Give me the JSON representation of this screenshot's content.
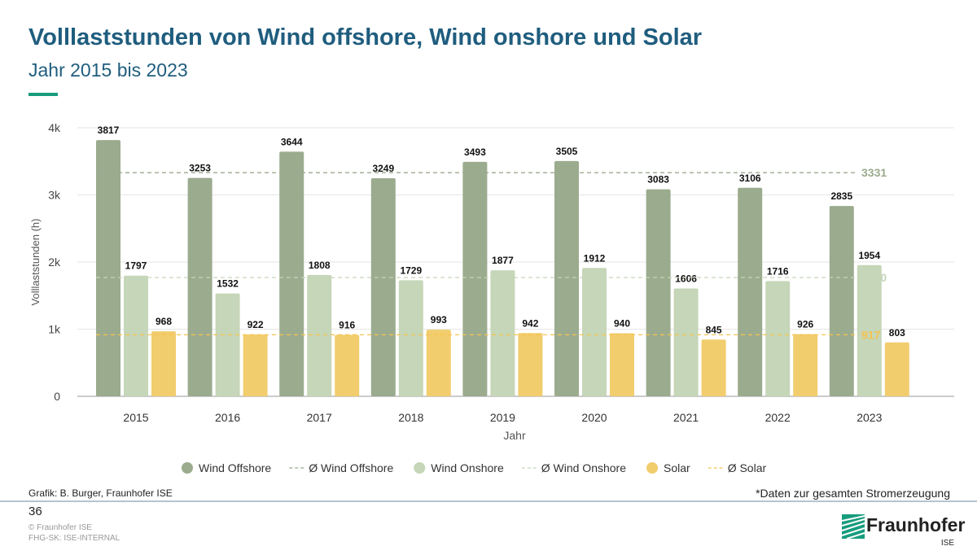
{
  "header": {
    "title": "Volllaststunden von Wind offshore, Wind onshore und Solar",
    "subtitle": "Jahr 2015 bis 2023"
  },
  "footer": {
    "credit": "Grafik: B. Burger, Fraunhofer ISE",
    "note": "*Daten zur gesamten Stromerzeugung",
    "page": "36",
    "copyright": "© Fraunhofer ISE",
    "classification": "FHG-SK: ISE-INTERNAL",
    "logo_text": "Fraunhofer",
    "logo_sub": "ISE"
  },
  "colors": {
    "title": "#1f5d7e",
    "accent": "#179c7d"
  },
  "chart_data": {
    "type": "bar",
    "xlabel": "Jahr",
    "ylabel": "Volllaststunden (h)",
    "ylim": [
      0,
      4000
    ],
    "yticks": [
      0,
      1000,
      2000,
      3000,
      4000
    ],
    "ytick_labels": [
      "0",
      "1k",
      "2k",
      "3k",
      "4k"
    ],
    "grid": true,
    "legend": "bottom",
    "categories": [
      "2015",
      "2016",
      "2017",
      "2018",
      "2019",
      "2020",
      "2021",
      "2022",
      "2023"
    ],
    "series": [
      {
        "name": "Wind Offshore",
        "color": "#9bab8e",
        "values": [
          3817,
          3253,
          3644,
          3249,
          3493,
          3505,
          3083,
          3106,
          2835
        ],
        "average": 3331,
        "average_name": "Ø Wind Offshore",
        "average_color": "#9bab8e"
      },
      {
        "name": "Wind Onshore",
        "color": "#c6d6b8",
        "values": [
          1797,
          1532,
          1808,
          1729,
          1877,
          1912,
          1606,
          1716,
          1954
        ],
        "average": 1770,
        "average_name": "Ø Wind Onshore",
        "average_color": "#c6d6b8"
      },
      {
        "name": "Solar",
        "color": "#f2cd6e",
        "values": [
          968,
          922,
          916,
          993,
          942,
          940,
          845,
          926,
          803
        ],
        "average": 917,
        "average_name": "Ø Solar",
        "average_color": "#f5c451"
      }
    ]
  }
}
